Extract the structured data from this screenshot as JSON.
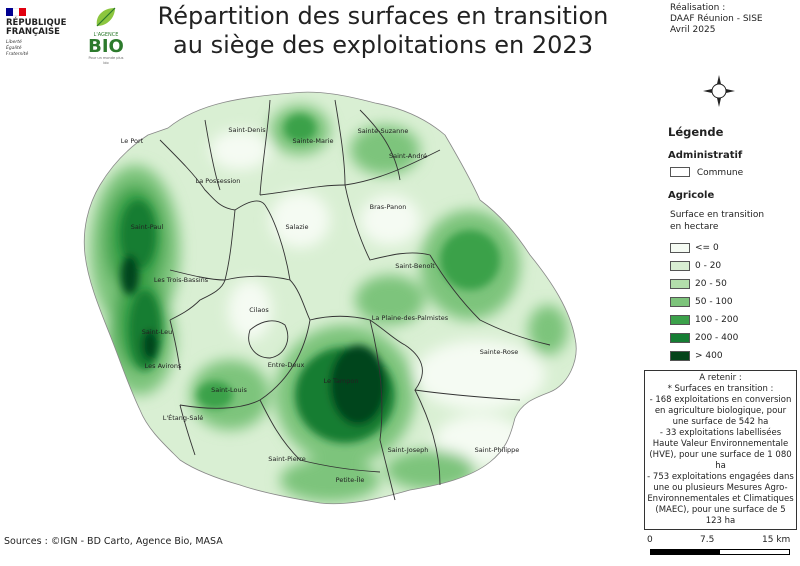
{
  "title_line1": "Répartition des surfaces en transition",
  "title_line2": "au siège des exploitations en 2023",
  "credit": {
    "line1": "Réalisation :",
    "line2": "DAAF Réunion - SISE",
    "line3": "Avril 2025"
  },
  "logos": {
    "rf_line1": "RÉPUBLIQUE",
    "rf_line2": "FRANÇAISE",
    "rf_motto1": "Liberté",
    "rf_motto2": "Égalité",
    "rf_motto3": "Fraternité",
    "bio_line1": "L'AGENCE",
    "bio_line2": "BIO",
    "bio_tagline": "Pour un monde plus bio"
  },
  "legend": {
    "title": "Légende",
    "admin_section": "Administratif",
    "commune_label": "Commune",
    "agri_section": "Agricole",
    "surface_label_line1": "Surface en transition",
    "surface_label_line2": "en hectare",
    "classes": [
      {
        "label": "<= 0",
        "color": "#f5fbf3"
      },
      {
        "label": "0 - 20",
        "color": "#d9efd3"
      },
      {
        "label": "20 - 50",
        "color": "#b3deab"
      },
      {
        "label": "50 - 100",
        "color": "#7dc47b"
      },
      {
        "label": "100 - 200",
        "color": "#3ba14a"
      },
      {
        "label": "200 - 400",
        "color": "#157d33"
      },
      {
        "label": "> 400",
        "color": "#05441a"
      }
    ]
  },
  "note": {
    "line1": "A retenir :",
    "line2": "* Surfaces en transition :",
    "item1": "- 168 exploitations en conversion en agriculture biologique, pour une surface de 542 ha",
    "item2": "- 33 exploitations labellisées Haute Valeur Environnementale (HVE), pour une surface de 1 080 ha",
    "item3": "- 753 exploitations engagées dans une ou plusieurs Mesures Agro-Environnementales et Climatiques (MAEC), pour une surface de 5 123 ha"
  },
  "sources": "Sources : ©IGN - BD Carto, Agence Bio, MASA",
  "scale": {
    "zero": "0",
    "mid": "7.5",
    "max": "15 km"
  },
  "communes": [
    "Saint-Denis",
    "Sainte-Marie",
    "Sainte-Suzanne",
    "Le Port",
    "Saint-André",
    "La Possession",
    "Bras-Panon",
    "Saint-Paul",
    "Salazie",
    "Saint-Benoît",
    "Les Trois-Bassins",
    "Cilaos",
    "La Plaine-des-Palmistes",
    "Saint-Leu",
    "Sainte-Rose",
    "Entre-Deux",
    "Les Avirons",
    "Le Tampon",
    "Saint-Louis",
    "L'Étang-Salé",
    "Saint-Pierre",
    "Saint-Joseph",
    "Saint-Philippe",
    "Petite-Île"
  ],
  "colors": {
    "blue": "#000091",
    "red": "#e1000f",
    "bio_green": "#2c7a2c",
    "water": "#ffffff"
  }
}
